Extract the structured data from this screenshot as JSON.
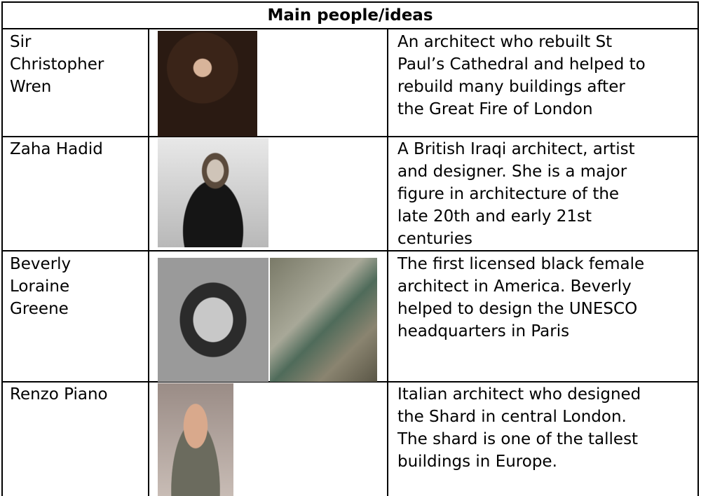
{
  "table": {
    "header": "Main people/ideas",
    "rows": [
      {
        "name": [
          "Sir",
          "Christopher",
          "Wren"
        ],
        "description": [
          "An architect who rebuilt St",
          "Paul’s Cathedral and helped to",
          "rebuild many buildings after",
          "the Great Fire of London"
        ]
      },
      {
        "name": [
          "Zaha Hadid"
        ],
        "description": [
          "A British Iraqi architect, artist",
          "and designer. She is a major",
          "figure in architecture of the",
          "late 20th and early 21st",
          "centuries"
        ]
      },
      {
        "name": [
          "Beverly",
          "Loraine",
          "Greene"
        ],
        "description": [
          "The first licensed black female",
          "architect in America. Beverly",
          "helped to design the UNESCO",
          "headquarters in Paris"
        ]
      },
      {
        "name": [
          "Renzo Piano"
        ],
        "description": [
          "Italian architect who designed",
          "the Shard in central London.",
          "The shard is one of the tallest",
          "buildings in Europe."
        ]
      }
    ]
  }
}
